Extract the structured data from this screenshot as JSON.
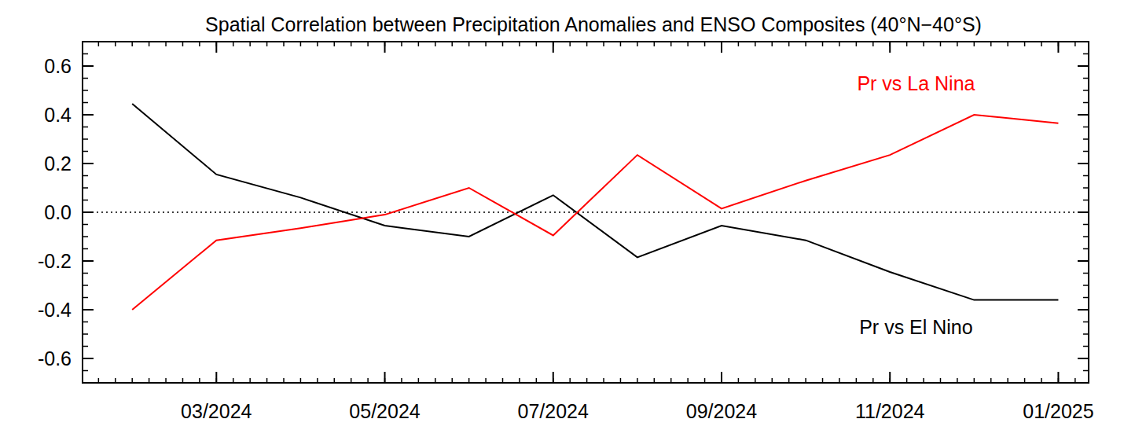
{
  "chart_data": {
    "type": "line",
    "title": "Spatial Correlation between Precipitation Anomalies and ENSO Composites (40°N−40°S)",
    "categories": [
      null,
      "03/2024",
      null,
      "05/2024",
      null,
      "07/2024",
      null,
      "09/2024",
      null,
      "11/2024",
      null,
      "01/2025"
    ],
    "series": [
      {
        "name": "Pr vs El Nino",
        "color": "#000000",
        "values": [
          0.445,
          0.155,
          0.06,
          -0.055,
          -0.1,
          0.07,
          -0.185,
          -0.055,
          -0.115,
          -0.245,
          -0.36,
          -0.36
        ]
      },
      {
        "name": "Pr vs La Nina",
        "color": "#ff0000",
        "values": [
          -0.4,
          -0.115,
          -0.065,
          -0.01,
          0.1,
          -0.095,
          0.235,
          0.015,
          0.13,
          0.235,
          0.4,
          0.365
        ]
      }
    ],
    "ylim": [
      -0.7,
      0.7
    ],
    "yticks": [
      -0.6,
      -0.4,
      -0.2,
      {
        "value": 0,
        "label": "0.0"
      },
      0.2,
      0.4,
      0.6
    ]
  }
}
